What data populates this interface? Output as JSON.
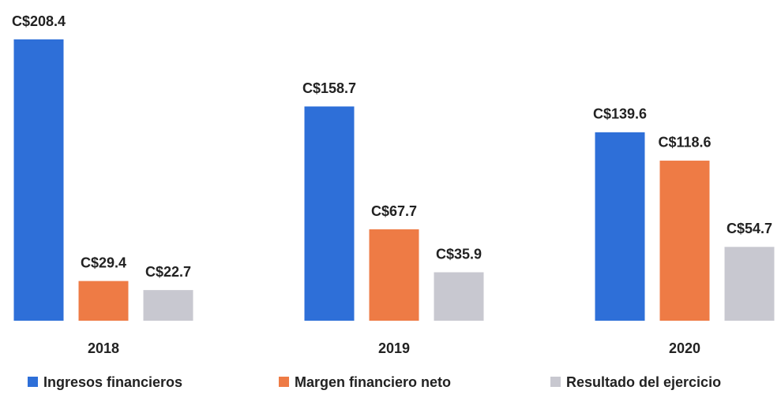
{
  "chart_data": {
    "type": "bar",
    "categories": [
      "2018",
      "2019",
      "2020"
    ],
    "series": [
      {
        "name": "Ingresos financieros",
        "color": "#2e6fd8",
        "values": [
          208.4,
          158.7,
          139.6
        ],
        "value_labels": [
          "C$208.4",
          "C$158.7",
          "C$139.6"
        ]
      },
      {
        "name": "Margen financiero neto",
        "color": "#ee7b45",
        "values": [
          29.4,
          67.7,
          118.6
        ],
        "value_labels": [
          "C$29.4",
          "C$67.7",
          "C$118.6"
        ]
      },
      {
        "name": "Resultado del ejercicio",
        "color": "#c8c8d0",
        "values": [
          22.7,
          35.9,
          54.7
        ],
        "value_labels": [
          "C$22.7",
          "C$35.9",
          "C$54.7"
        ]
      }
    ],
    "legend": "bottom"
  }
}
